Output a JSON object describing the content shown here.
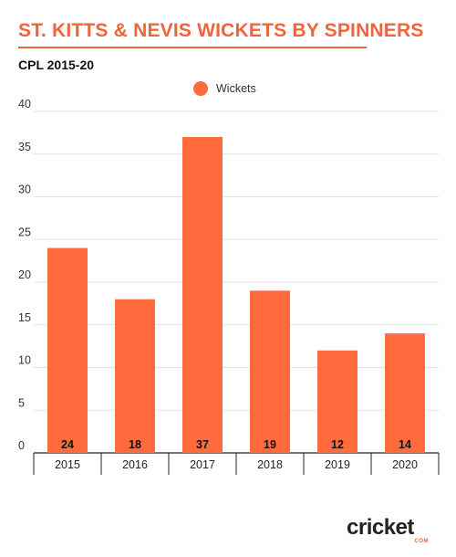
{
  "header": {
    "title": "ST. KITTS & NEVIS WICKETS BY SPINNERS",
    "subtitle": "CPL 2015-20"
  },
  "colors": {
    "accent": "#f0643a",
    "bar": "#ff6b3d"
  },
  "logo": {
    "text": "cricket",
    "sub": "COM"
  },
  "chart_data": {
    "type": "bar",
    "title": "ST. KITTS & NEVIS WICKETS BY SPINNERS",
    "subtitle": "CPL 2015-20",
    "categories": [
      "2015",
      "2016",
      "2017",
      "2018",
      "2019",
      "2020"
    ],
    "series": [
      {
        "name": "Wickets",
        "values": [
          24,
          18,
          37,
          19,
          12,
          14
        ]
      }
    ],
    "xlabel": "",
    "ylabel": "",
    "ylim": [
      0,
      40
    ],
    "yticks": [
      0,
      5,
      10,
      15,
      20,
      25,
      30,
      35,
      40
    ],
    "grid": true,
    "legend": "top-center",
    "data_labels": true
  }
}
